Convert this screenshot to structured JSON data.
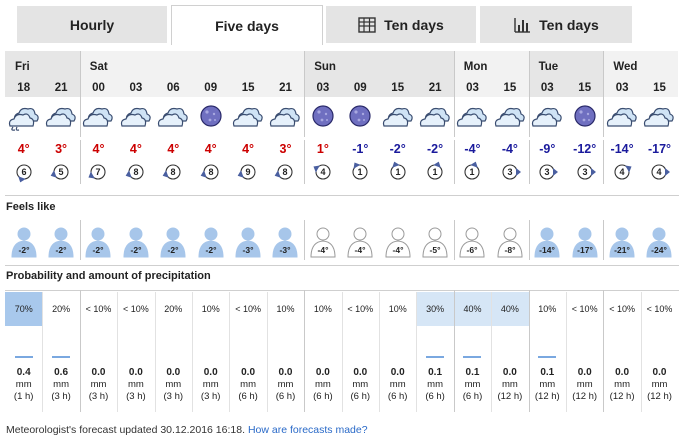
{
  "tabs": [
    {
      "label": "Hourly",
      "active": false,
      "icon": null
    },
    {
      "label": "Five days",
      "active": true,
      "icon": null
    },
    {
      "label": "Ten days",
      "active": false,
      "icon": "table-icon"
    },
    {
      "label": "Ten days",
      "active": false,
      "icon": "bar-chart-icon"
    }
  ],
  "days": [
    "Fri",
    "Sat",
    "Sun",
    "Mon",
    "Tue",
    "Wed"
  ],
  "columns": [
    {
      "hour": "18",
      "icon": "cloud-rain-icon",
      "temp": "4°",
      "temp_color": "#cc0000",
      "wind_speed": "6",
      "wind_dir_deg": 200,
      "feels": "-2°",
      "feels_dark": true,
      "prob": "70%",
      "prob_level": 2,
      "amount": "0.4",
      "amount_bar": true,
      "unit": "mm",
      "period": "(1 h)"
    },
    {
      "hour": "21",
      "icon": "cloudy-icon",
      "temp": "3°",
      "temp_color": "#cc0000",
      "wind_speed": "5",
      "wind_dir_deg": 250,
      "feels": "-2°",
      "feels_dark": true,
      "prob": "20%",
      "prob_level": 0,
      "amount": "0.6",
      "amount_bar": true,
      "unit": "mm",
      "period": "(3 h)"
    },
    {
      "hour": "00",
      "icon": "cloudy-icon",
      "temp": "4°",
      "temp_color": "#cc0000",
      "wind_speed": "7",
      "wind_dir_deg": 240,
      "feels": "-2°",
      "feels_dark": true,
      "prob": "< 10%",
      "prob_level": 0,
      "amount": "0.0",
      "amount_bar": false,
      "unit": "mm",
      "period": "(3 h)"
    },
    {
      "hour": "03",
      "icon": "cloudy-icon",
      "temp": "4°",
      "temp_color": "#cc0000",
      "wind_speed": "8",
      "wind_dir_deg": 250,
      "feels": "-2°",
      "feels_dark": true,
      "prob": "< 10%",
      "prob_level": 0,
      "amount": "0.0",
      "amount_bar": false,
      "unit": "mm",
      "period": "(3 h)"
    },
    {
      "hour": "06",
      "icon": "cloudy-icon",
      "temp": "4°",
      "temp_color": "#cc0000",
      "wind_speed": "8",
      "wind_dir_deg": 250,
      "feels": "-2°",
      "feels_dark": true,
      "prob": "20%",
      "prob_level": 0,
      "amount": "0.0",
      "amount_bar": false,
      "unit": "mm",
      "period": "(3 h)"
    },
    {
      "hour": "09",
      "icon": "moon-icon",
      "temp": "4°",
      "temp_color": "#cc0000",
      "wind_speed": "8",
      "wind_dir_deg": 250,
      "feels": "-2°",
      "feels_dark": true,
      "prob": "10%",
      "prob_level": 0,
      "amount": "0.0",
      "amount_bar": false,
      "unit": "mm",
      "period": "(3 h)"
    },
    {
      "hour": "15",
      "icon": "cloudy-icon",
      "temp": "4°",
      "temp_color": "#cc0000",
      "wind_speed": "9",
      "wind_dir_deg": 250,
      "feels": "-3°",
      "feels_dark": true,
      "prob": "< 10%",
      "prob_level": 0,
      "amount": "0.0",
      "amount_bar": false,
      "unit": "mm",
      "period": "(6 h)"
    },
    {
      "hour": "21",
      "icon": "cloudy-icon",
      "temp": "3°",
      "temp_color": "#cc0000",
      "wind_speed": "8",
      "wind_dir_deg": 250,
      "feels": "-3°",
      "feels_dark": true,
      "prob": "10%",
      "prob_level": 0,
      "amount": "0.0",
      "amount_bar": false,
      "unit": "mm",
      "period": "(6 h)"
    },
    {
      "hour": "03",
      "icon": "moon-icon",
      "temp": "1°",
      "temp_color": "#cc0000",
      "wind_speed": "4",
      "wind_dir_deg": 300,
      "feels": "-4°",
      "feels_dark": false,
      "prob": "10%",
      "prob_level": 0,
      "amount": "0.0",
      "amount_bar": false,
      "unit": "mm",
      "period": "(6 h)"
    },
    {
      "hour": "09",
      "icon": "moon-icon",
      "temp": "-1°",
      "temp_color": "#1a1a9c",
      "wind_speed": "1",
      "wind_dir_deg": 330,
      "feels": "-4°",
      "feels_dark": false,
      "prob": "< 10%",
      "prob_level": 0,
      "amount": "0.0",
      "amount_bar": false,
      "unit": "mm",
      "period": "(6 h)"
    },
    {
      "hour": "15",
      "icon": "cloudy-icon",
      "temp": "-2°",
      "temp_color": "#1a1a9c",
      "wind_speed": "1",
      "wind_dir_deg": 340,
      "feels": "-4°",
      "feels_dark": false,
      "prob": "10%",
      "prob_level": 0,
      "amount": "0.0",
      "amount_bar": false,
      "unit": "mm",
      "period": "(6 h)"
    },
    {
      "hour": "21",
      "icon": "cloudy-icon",
      "temp": "-2°",
      "temp_color": "#1a1a9c",
      "wind_speed": "1",
      "wind_dir_deg": 20,
      "feels": "-5°",
      "feels_dark": false,
      "prob": "30%",
      "prob_level": 1,
      "amount": "0.1",
      "amount_bar": true,
      "unit": "mm",
      "period": "(6 h)"
    },
    {
      "hour": "03",
      "icon": "cloudy-icon",
      "temp": "-4°",
      "temp_color": "#1a1a9c",
      "wind_speed": "1",
      "wind_dir_deg": 20,
      "feels": "-6°",
      "feels_dark": false,
      "prob": "40%",
      "prob_level": 1,
      "amount": "0.1",
      "amount_bar": true,
      "unit": "mm",
      "period": "(6 h)"
    },
    {
      "hour": "15",
      "icon": "cloudy-icon",
      "temp": "-4°",
      "temp_color": "#1a1a9c",
      "wind_speed": "3",
      "wind_dir_deg": 90,
      "feels": "-8°",
      "feels_dark": false,
      "prob": "40%",
      "prob_level": 1,
      "amount": "0.0",
      "amount_bar": false,
      "unit": "mm",
      "period": "(12 h)"
    },
    {
      "hour": "03",
      "icon": "cloudy-icon",
      "temp": "-9°",
      "temp_color": "#1a1a9c",
      "wind_speed": "3",
      "wind_dir_deg": 90,
      "feels": "-14°",
      "feels_dark": true,
      "prob": "10%",
      "prob_level": 0,
      "amount": "0.1",
      "amount_bar": true,
      "unit": "mm",
      "period": "(12 h)"
    },
    {
      "hour": "15",
      "icon": "moon-icon",
      "temp": "-12°",
      "temp_color": "#1a1a9c",
      "wind_speed": "3",
      "wind_dir_deg": 90,
      "feels": "-17°",
      "feels_dark": true,
      "prob": "< 10%",
      "prob_level": 0,
      "amount": "0.0",
      "amount_bar": false,
      "unit": "mm",
      "period": "(12 h)"
    },
    {
      "hour": "03",
      "icon": "cloudy-icon",
      "temp": "-14°",
      "temp_color": "#1a1a9c",
      "wind_speed": "4",
      "wind_dir_deg": 60,
      "feels": "-21°",
      "feels_dark": true,
      "prob": "< 10%",
      "prob_level": 0,
      "amount": "0.0",
      "amount_bar": false,
      "unit": "mm",
      "period": "(12 h)"
    },
    {
      "hour": "15",
      "icon": "cloudy-icon",
      "temp": "-17°",
      "temp_color": "#1a1a9c",
      "wind_speed": "4",
      "wind_dir_deg": 90,
      "feels": "-24°",
      "feels_dark": true,
      "prob": "< 10%",
      "prob_level": 0,
      "amount": "0.0",
      "amount_bar": false,
      "unit": "mm",
      "period": "(12 h)"
    }
  ],
  "sections": {
    "feels_like": "Feels like",
    "precip": "Probability and amount of precipitation"
  },
  "footer": {
    "text": "Meteorologist's forecast updated 30.12.2016 16:18.",
    "link": "How are forecasts made?"
  },
  "colors": {
    "warm_temp": "#cc0000",
    "cold_temp": "#1a1a9c",
    "day_header_bg": "#e6e6e6",
    "prob_high": "#a8c8ec",
    "prob_mid": "#d6e6f6",
    "link": "#2a6ac8"
  }
}
